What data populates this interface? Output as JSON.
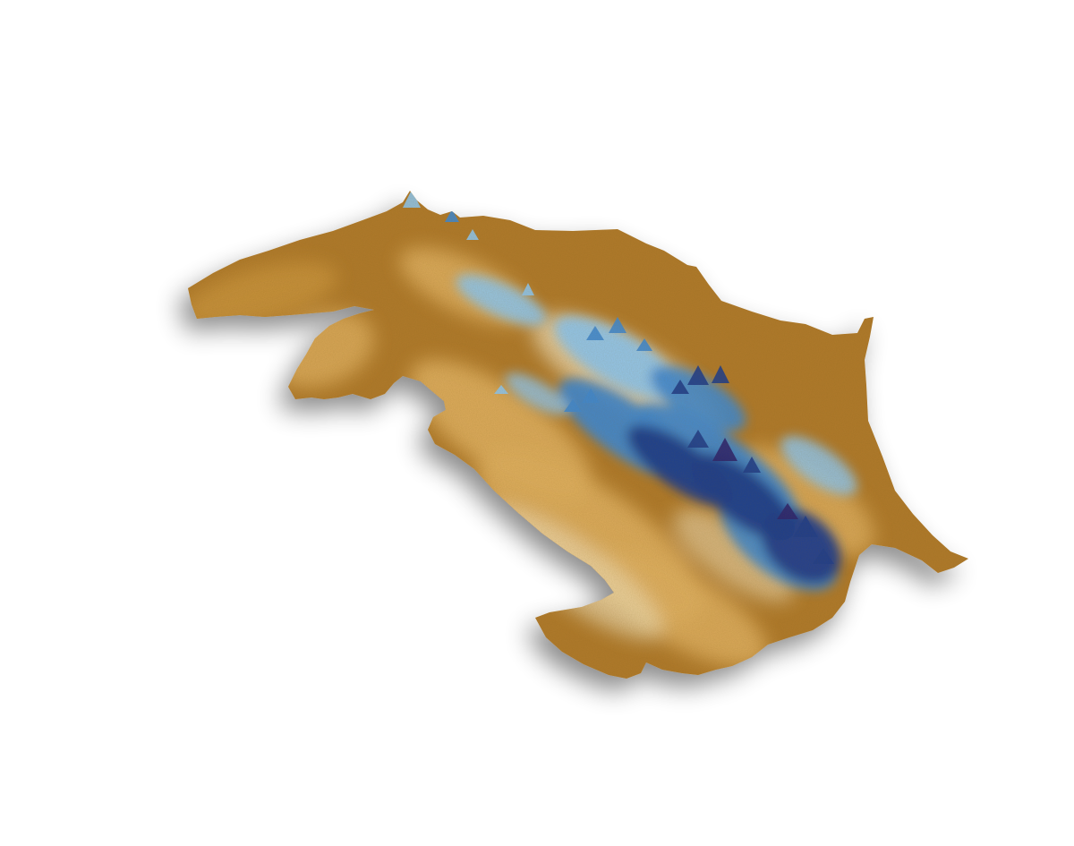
{
  "map": {
    "style": "3d-relief-elevation",
    "colors": {
      "background": "#ffffff",
      "lowland": "#b07a2a",
      "lowland_light": "#c8923a",
      "midland": "#e0b060",
      "highland_pale": "#f2e4c0",
      "peak_light": "#8ec6ef",
      "peak_mid": "#3f88d0",
      "peak_deep": "#1e3d8c",
      "summit": "#2a2470",
      "shadow": "#8a8a8a"
    },
    "elevation_ramp": [
      "#b07a2a",
      "#d9a24c",
      "#edd2a0",
      "#f4ecd9",
      "#9fd0f2",
      "#4a92d6",
      "#1f4f9c",
      "#2a2470"
    ]
  }
}
